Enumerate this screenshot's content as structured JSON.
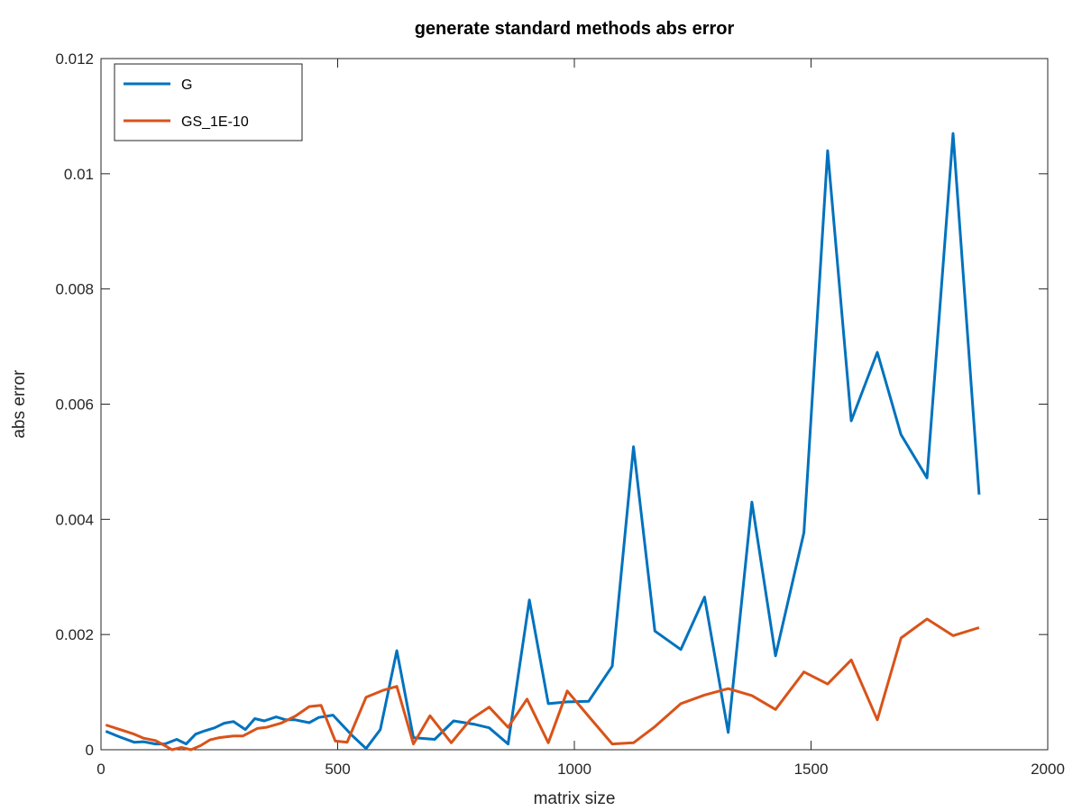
{
  "chart_data": {
    "type": "line",
    "title": "generate standard methods abs error",
    "xlabel": "matrix size",
    "ylabel": "abs error",
    "xlim": [
      0,
      2000
    ],
    "ylim": [
      0,
      0.012
    ],
    "x_ticks": [
      0,
      500,
      1000,
      1500,
      2000
    ],
    "x_tick_labels": [
      "0",
      "500",
      "1000",
      "1500",
      "2000"
    ],
    "y_ticks": [
      0,
      0.002,
      0.004,
      0.006,
      0.008,
      0.01,
      0.012
    ],
    "y_tick_labels": [
      "0",
      "0.002",
      "0.004",
      "0.006",
      "0.008",
      "0.01",
      "0.012"
    ],
    "grid": false,
    "legend_position": "top-left",
    "series": [
      {
        "name": "G",
        "color": "#0072BD",
        "points": [
          [
            10,
            0.00032
          ],
          [
            40,
            0.00022
          ],
          [
            70,
            0.00013
          ],
          [
            90,
            0.00014
          ],
          [
            115,
            0.0001
          ],
          [
            135,
            0.0001
          ],
          [
            160,
            0.00018
          ],
          [
            180,
            0.0001
          ],
          [
            200,
            0.00027
          ],
          [
            220,
            0.00033
          ],
          [
            240,
            0.00038
          ],
          [
            260,
            0.00046
          ],
          [
            280,
            0.00049
          ],
          [
            305,
            0.00035
          ],
          [
            325,
            0.00054
          ],
          [
            345,
            0.0005
          ],
          [
            370,
            0.00057
          ],
          [
            390,
            0.00052
          ],
          [
            410,
            0.00052
          ],
          [
            440,
            0.00047
          ],
          [
            460,
            0.00056
          ],
          [
            490,
            0.0006
          ],
          [
            530,
            0.00025
          ],
          [
            560,
            2e-05
          ],
          [
            590,
            0.00035
          ],
          [
            625,
            0.00172
          ],
          [
            660,
            0.00021
          ],
          [
            705,
            0.00018
          ],
          [
            745,
            0.0005
          ],
          [
            790,
            0.00044
          ],
          [
            820,
            0.00038
          ],
          [
            860,
            0.0001
          ],
          [
            905,
            0.0026
          ],
          [
            945,
            0.0008
          ],
          [
            985,
            0.00083
          ],
          [
            1030,
            0.00084
          ],
          [
            1080,
            0.00145
          ],
          [
            1125,
            0.00526
          ],
          [
            1170,
            0.00206
          ],
          [
            1225,
            0.00174
          ],
          [
            1275,
            0.00265
          ],
          [
            1325,
            0.0003
          ],
          [
            1375,
            0.0043
          ],
          [
            1425,
            0.00163
          ],
          [
            1485,
            0.00377
          ],
          [
            1535,
            0.0104
          ],
          [
            1585,
            0.00571
          ],
          [
            1640,
            0.0069
          ],
          [
            1690,
            0.00547
          ],
          [
            1745,
            0.00472
          ],
          [
            1800,
            0.0107
          ],
          [
            1855,
            0.00443
          ]
        ]
      },
      {
        "name": "GS_1E-10",
        "color": "#D95319",
        "points": [
          [
            10,
            0.00043
          ],
          [
            40,
            0.00035
          ],
          [
            70,
            0.00027
          ],
          [
            90,
            0.0002
          ],
          [
            115,
            0.00016
          ],
          [
            135,
            7e-05
          ],
          [
            150,
            0.0
          ],
          [
            170,
            4e-05
          ],
          [
            190,
            0.0
          ],
          [
            210,
            7e-05
          ],
          [
            230,
            0.00017
          ],
          [
            250,
            0.00021
          ],
          [
            280,
            0.00024
          ],
          [
            300,
            0.00024
          ],
          [
            330,
            0.00037
          ],
          [
            350,
            0.00039
          ],
          [
            380,
            0.00046
          ],
          [
            410,
            0.00058
          ],
          [
            440,
            0.00075
          ],
          [
            465,
            0.00077
          ],
          [
            495,
            0.00015
          ],
          [
            520,
            0.00013
          ],
          [
            560,
            0.00091
          ],
          [
            595,
            0.00103
          ],
          [
            625,
            0.0011
          ],
          [
            660,
            0.0001
          ],
          [
            695,
            0.00059
          ],
          [
            740,
            0.00012
          ],
          [
            780,
            0.00052
          ],
          [
            820,
            0.00074
          ],
          [
            860,
            0.00039
          ],
          [
            900,
            0.00088
          ],
          [
            945,
            0.00012
          ],
          [
            985,
            0.00102
          ],
          [
            1030,
            0.00058
          ],
          [
            1080,
            0.0001
          ],
          [
            1125,
            0.00012
          ],
          [
            1170,
            0.0004
          ],
          [
            1225,
            0.0008
          ],
          [
            1275,
            0.00095
          ],
          [
            1325,
            0.00106
          ],
          [
            1375,
            0.00094
          ],
          [
            1425,
            0.0007
          ],
          [
            1485,
            0.00135
          ],
          [
            1535,
            0.00114
          ],
          [
            1585,
            0.00156
          ],
          [
            1640,
            0.00052
          ],
          [
            1690,
            0.00194
          ],
          [
            1745,
            0.00227
          ],
          [
            1800,
            0.00198
          ],
          [
            1855,
            0.00212
          ]
        ]
      }
    ]
  }
}
